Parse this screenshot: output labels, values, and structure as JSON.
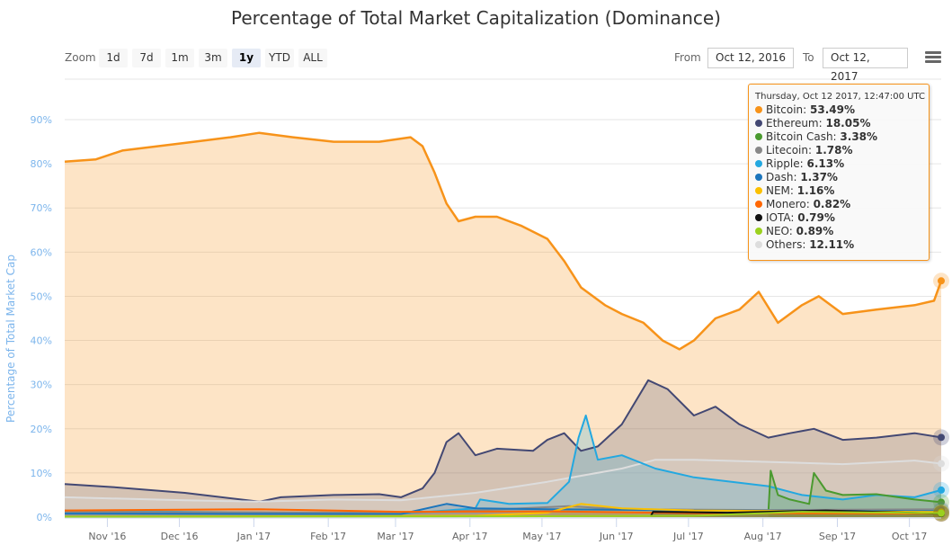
{
  "title": "Percentage of Total Market Capitalization (Dominance)",
  "toolbar": {
    "zoom_label": "Zoom",
    "zoom_buttons": [
      "1d",
      "7d",
      "1m",
      "3m",
      "1y",
      "YTD",
      "ALL"
    ],
    "selected_zoom": "1y",
    "from_label": "From",
    "from_value": "Oct 12, 2016",
    "to_label": "To",
    "to_value": "Oct 12, 2017",
    "menu_icon": "hamburger-menu-icon"
  },
  "tooltip": {
    "header": "Thursday, Oct 12 2017, 12:47:00 UTC",
    "rows": [
      {
        "name": "Bitcoin",
        "value": "53.49%",
        "color": "#f7931a"
      },
      {
        "name": "Ethereum",
        "value": "18.05%",
        "color": "#434873"
      },
      {
        "name": "Bitcoin Cash",
        "value": "3.38%",
        "color": "#4a9a2f"
      },
      {
        "name": "Litecoin",
        "value": "1.78%",
        "color": "#888888"
      },
      {
        "name": "Ripple",
        "value": "6.13%",
        "color": "#23a8e0"
      },
      {
        "name": "Dash",
        "value": "1.37%",
        "color": "#1c75bc"
      },
      {
        "name": "NEM",
        "value": "1.16%",
        "color": "#fbc000"
      },
      {
        "name": "Monero",
        "value": "0.82%",
        "color": "#ff6600"
      },
      {
        "name": "IOTA",
        "value": "0.79%",
        "color": "#111111"
      },
      {
        "name": "NEO",
        "value": "0.89%",
        "color": "#9bd11e"
      },
      {
        "name": "Others",
        "value": "12.11%",
        "color": "#dddddd"
      }
    ]
  },
  "chart_data": {
    "type": "area",
    "title": "Percentage of Total Market Capitalization (Dominance)",
    "ylabel": "Percentage of Total Market Cap",
    "xlabel": "",
    "xlim": [
      "2016-10-12",
      "2017-10-12"
    ],
    "ylim": [
      0,
      90
    ],
    "yticks": [
      "0%",
      "10%",
      "20%",
      "30%",
      "40%",
      "50%",
      "60%",
      "70%",
      "80%",
      "90%"
    ],
    "xticks": [
      {
        "date": "2016-11-01",
        "label": "Nov '16"
      },
      {
        "date": "2016-12-01",
        "label": "Dec '16"
      },
      {
        "date": "2017-01-01",
        "label": "Jan '17"
      },
      {
        "date": "2017-02-01",
        "label": "Feb '17"
      },
      {
        "date": "2017-03-01",
        "label": "Mar '17"
      },
      {
        "date": "2017-04-01",
        "label": "Apr '17"
      },
      {
        "date": "2017-05-01",
        "label": "May '17"
      },
      {
        "date": "2017-06-01",
        "label": "Jun '17"
      },
      {
        "date": "2017-07-01",
        "label": "Jul '17"
      },
      {
        "date": "2017-08-01",
        "label": "Aug '17"
      },
      {
        "date": "2017-09-01",
        "label": "Sep '17"
      },
      {
        "date": "2017-10-01",
        "label": "Oct '17"
      }
    ],
    "grid": true,
    "legend": "none",
    "series": [
      {
        "name": "Bitcoin",
        "color": "#f7931a",
        "points": [
          [
            "2016-10-12",
            80.5
          ],
          [
            "2016-10-25",
            81
          ],
          [
            "2016-11-05",
            83
          ],
          [
            "2016-11-20",
            84
          ],
          [
            "2016-12-05",
            85
          ],
          [
            "2016-12-20",
            86
          ],
          [
            "2017-01-01",
            87
          ],
          [
            "2017-01-15",
            86
          ],
          [
            "2017-02-01",
            85
          ],
          [
            "2017-02-20",
            85
          ],
          [
            "2017-03-05",
            86
          ],
          [
            "2017-03-10",
            84
          ],
          [
            "2017-03-15",
            78
          ],
          [
            "2017-03-20",
            71
          ],
          [
            "2017-03-25",
            67
          ],
          [
            "2017-04-01",
            68
          ],
          [
            "2017-04-10",
            68
          ],
          [
            "2017-04-20",
            66
          ],
          [
            "2017-05-01",
            63
          ],
          [
            "2017-05-08",
            58
          ],
          [
            "2017-05-15",
            52
          ],
          [
            "2017-05-25",
            48
          ],
          [
            "2017-06-01",
            46
          ],
          [
            "2017-06-10",
            44
          ],
          [
            "2017-06-18",
            40
          ],
          [
            "2017-06-25",
            38
          ],
          [
            "2017-07-01",
            40
          ],
          [
            "2017-07-10",
            45
          ],
          [
            "2017-07-20",
            47
          ],
          [
            "2017-07-28",
            51
          ],
          [
            "2017-08-05",
            44
          ],
          [
            "2017-08-15",
            48
          ],
          [
            "2017-08-22",
            50
          ],
          [
            "2017-09-01",
            46
          ],
          [
            "2017-09-15",
            47
          ],
          [
            "2017-10-01",
            48
          ],
          [
            "2017-10-09",
            49
          ],
          [
            "2017-10-12",
            53.49
          ]
        ]
      },
      {
        "name": "Ethereum",
        "color": "#434873",
        "points": [
          [
            "2016-10-12",
            7.5
          ],
          [
            "2016-11-01",
            6.8
          ],
          [
            "2016-12-01",
            5.5
          ],
          [
            "2017-01-01",
            3.5
          ],
          [
            "2017-01-10",
            4.5
          ],
          [
            "2017-02-01",
            5
          ],
          [
            "2017-02-20",
            5.2
          ],
          [
            "2017-03-01",
            4.5
          ],
          [
            "2017-03-10",
            6.5
          ],
          [
            "2017-03-15",
            10
          ],
          [
            "2017-03-20",
            17
          ],
          [
            "2017-03-25",
            19
          ],
          [
            "2017-04-01",
            14
          ],
          [
            "2017-04-10",
            15.5
          ],
          [
            "2017-04-25",
            15
          ],
          [
            "2017-05-01",
            17.5
          ],
          [
            "2017-05-08",
            19
          ],
          [
            "2017-05-15",
            15
          ],
          [
            "2017-05-22",
            16
          ],
          [
            "2017-06-01",
            21
          ],
          [
            "2017-06-12",
            31
          ],
          [
            "2017-06-20",
            29
          ],
          [
            "2017-07-01",
            23
          ],
          [
            "2017-07-10",
            25
          ],
          [
            "2017-07-20",
            21
          ],
          [
            "2017-08-01",
            18
          ],
          [
            "2017-08-10",
            19
          ],
          [
            "2017-08-20",
            20
          ],
          [
            "2017-09-01",
            17.5
          ],
          [
            "2017-09-15",
            18
          ],
          [
            "2017-10-01",
            19
          ],
          [
            "2017-10-12",
            18.05
          ]
        ]
      },
      {
        "name": "Others",
        "color": "#dddddd",
        "points": [
          [
            "2016-10-12",
            4.5
          ],
          [
            "2016-12-01",
            3.8
          ],
          [
            "2017-01-01",
            3.5
          ],
          [
            "2017-02-01",
            4
          ],
          [
            "2017-03-01",
            3.8
          ],
          [
            "2017-04-01",
            5.5
          ],
          [
            "2017-05-01",
            8
          ],
          [
            "2017-06-01",
            11
          ],
          [
            "2017-06-15",
            13
          ],
          [
            "2017-07-01",
            13
          ],
          [
            "2017-08-01",
            12.5
          ],
          [
            "2017-09-01",
            12
          ],
          [
            "2017-10-01",
            12.8
          ],
          [
            "2017-10-12",
            12.11
          ]
        ]
      },
      {
        "name": "Ripple",
        "color": "#23a8e0",
        "points": [
          [
            "2016-10-12",
            1.5
          ],
          [
            "2016-12-01",
            1.2
          ],
          [
            "2017-02-01",
            0.9
          ],
          [
            "2017-03-01",
            0.8
          ],
          [
            "2017-03-20",
            1.5
          ],
          [
            "2017-04-01",
            2
          ],
          [
            "2017-04-03",
            4
          ],
          [
            "2017-04-15",
            3
          ],
          [
            "2017-05-01",
            3.2
          ],
          [
            "2017-05-10",
            8
          ],
          [
            "2017-05-14",
            18
          ],
          [
            "2017-05-17",
            23
          ],
          [
            "2017-05-22",
            13
          ],
          [
            "2017-06-01",
            14
          ],
          [
            "2017-06-15",
            11
          ],
          [
            "2017-07-01",
            9
          ],
          [
            "2017-08-01",
            7
          ],
          [
            "2017-08-15",
            5
          ],
          [
            "2017-09-01",
            4
          ],
          [
            "2017-09-15",
            5
          ],
          [
            "2017-10-01",
            4.5
          ],
          [
            "2017-10-12",
            6.13
          ]
        ]
      },
      {
        "name": "Bitcoin Cash",
        "color": "#4a9a2f",
        "points": [
          [
            "2017-08-01",
            1
          ],
          [
            "2017-08-02",
            10.5
          ],
          [
            "2017-08-05",
            5
          ],
          [
            "2017-08-10",
            4
          ],
          [
            "2017-08-18",
            3
          ],
          [
            "2017-08-20",
            10
          ],
          [
            "2017-08-25",
            6
          ],
          [
            "2017-09-01",
            5
          ],
          [
            "2017-09-15",
            5.2
          ],
          [
            "2017-10-01",
            4
          ],
          [
            "2017-10-12",
            3.38
          ]
        ]
      },
      {
        "name": "Litecoin",
        "color": "#888888",
        "points": [
          [
            "2016-10-12",
            1.2
          ],
          [
            "2017-03-01",
            1
          ],
          [
            "2017-04-01",
            1.5
          ],
          [
            "2017-05-10",
            2.5
          ],
          [
            "2017-06-01",
            1.8
          ],
          [
            "2017-08-01",
            1.6
          ],
          [
            "2017-10-12",
            1.78
          ]
        ]
      },
      {
        "name": "Dash",
        "color": "#1c75bc",
        "points": [
          [
            "2016-10-12",
            0.8
          ],
          [
            "2017-03-01",
            0.7
          ],
          [
            "2017-03-20",
            3
          ],
          [
            "2017-04-01",
            2
          ],
          [
            "2017-05-01",
            1.8
          ],
          [
            "2017-07-01",
            1.5
          ],
          [
            "2017-10-12",
            1.37
          ]
        ]
      },
      {
        "name": "NEM",
        "color": "#fbc000",
        "points": [
          [
            "2016-10-12",
            0.1
          ],
          [
            "2017-04-01",
            0.3
          ],
          [
            "2017-05-01",
            1
          ],
          [
            "2017-05-15",
            3
          ],
          [
            "2017-06-01",
            2
          ],
          [
            "2017-07-01",
            1.5
          ],
          [
            "2017-10-12",
            1.16
          ]
        ]
      },
      {
        "name": "Monero",
        "color": "#ff6600",
        "points": [
          [
            "2016-10-12",
            1.5
          ],
          [
            "2017-01-01",
            1.8
          ],
          [
            "2017-03-01",
            1.2
          ],
          [
            "2017-05-01",
            1.3
          ],
          [
            "2017-07-01",
            0.9
          ],
          [
            "2017-10-12",
            0.82
          ]
        ]
      },
      {
        "name": "IOTA",
        "color": "#111111",
        "points": [
          [
            "2017-06-13",
            0.2
          ],
          [
            "2017-06-14",
            1.2
          ],
          [
            "2017-07-15",
            1
          ],
          [
            "2017-08-25",
            1.5
          ],
          [
            "2017-10-12",
            0.79
          ]
        ]
      },
      {
        "name": "NEO",
        "color": "#9bd11e",
        "points": [
          [
            "2016-10-12",
            0.1
          ],
          [
            "2017-05-01",
            0.2
          ],
          [
            "2017-07-01",
            0.3
          ],
          [
            "2017-08-15",
            1.2
          ],
          [
            "2017-10-12",
            0.89
          ]
        ]
      }
    ]
  }
}
